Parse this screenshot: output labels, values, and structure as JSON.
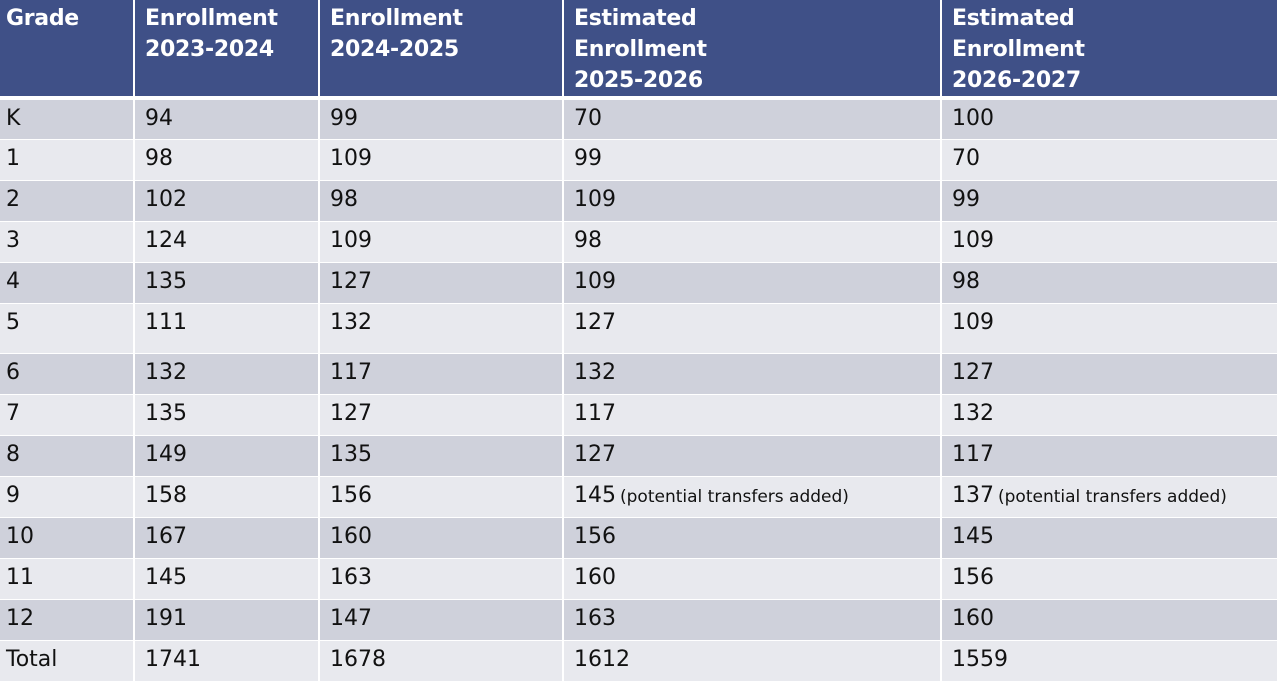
{
  "table": {
    "headers": [
      [
        "Grade"
      ],
      [
        "Enrollment",
        "2023-2024"
      ],
      [
        "Enrollment",
        "2024-2025"
      ],
      [
        "Estimated",
        "Enrollment",
        "2025-2026"
      ],
      [
        "Estimated",
        "Enrollment",
        "2026-2027"
      ]
    ],
    "rows": [
      {
        "grade": "K",
        "e2324": "94",
        "e2425": "99",
        "e2526": "70",
        "e2526_note": "",
        "e2627": "100",
        "e2627_note": ""
      },
      {
        "grade": "1",
        "e2324": "98",
        "e2425": "109",
        "e2526": "99",
        "e2526_note": "",
        "e2627": "70",
        "e2627_note": ""
      },
      {
        "grade": "2",
        "e2324": "102",
        "e2425": "98",
        "e2526": "109",
        "e2526_note": "",
        "e2627": "99",
        "e2627_note": ""
      },
      {
        "grade": "3",
        "e2324": "124",
        "e2425": "109",
        "e2526": "98",
        "e2526_note": "",
        "e2627": "109",
        "e2627_note": ""
      },
      {
        "grade": "4",
        "e2324": "135",
        "e2425": "127",
        "e2526": "109",
        "e2526_note": "",
        "e2627": "98",
        "e2627_note": ""
      },
      {
        "grade": "5",
        "e2324": "111",
        "e2425": "132",
        "e2526": "127",
        "e2526_note": "",
        "e2627": "109",
        "e2627_note": ""
      },
      {
        "grade": "6",
        "e2324": "132",
        "e2425": "117",
        "e2526": "132",
        "e2526_note": "",
        "e2627": "127",
        "e2627_note": ""
      },
      {
        "grade": "7",
        "e2324": "135",
        "e2425": "127",
        "e2526": "117",
        "e2526_note": "",
        "e2627": "132",
        "e2627_note": ""
      },
      {
        "grade": "8",
        "e2324": "149",
        "e2425": "135",
        "e2526": "127",
        "e2526_note": "",
        "e2627": "117",
        "e2627_note": ""
      },
      {
        "grade": "9",
        "e2324": "158",
        "e2425": "156",
        "e2526": "145",
        "e2526_note": "(potential transfers added)",
        "e2627": "137",
        "e2627_note": "(potential transfers added)"
      },
      {
        "grade": "10",
        "e2324": "167",
        "e2425": "160",
        "e2526": "156",
        "e2526_note": "",
        "e2627": "145",
        "e2627_note": ""
      },
      {
        "grade": "11",
        "e2324": "145",
        "e2425": "163",
        "e2526": "160",
        "e2526_note": "",
        "e2627": "156",
        "e2627_note": ""
      },
      {
        "grade": "12",
        "e2324": "191",
        "e2425": "147",
        "e2526": "163",
        "e2526_note": "",
        "e2627": "160",
        "e2627_note": ""
      },
      {
        "grade": "Total",
        "e2324": "1741",
        "e2425": "1678",
        "e2526": "1612",
        "e2526_note": "",
        "e2627": "1559",
        "e2627_note": ""
      }
    ]
  },
  "colors": {
    "header_bg": "#3f5087",
    "row_odd": "#cfd1db",
    "row_even": "#e8e9ee"
  }
}
